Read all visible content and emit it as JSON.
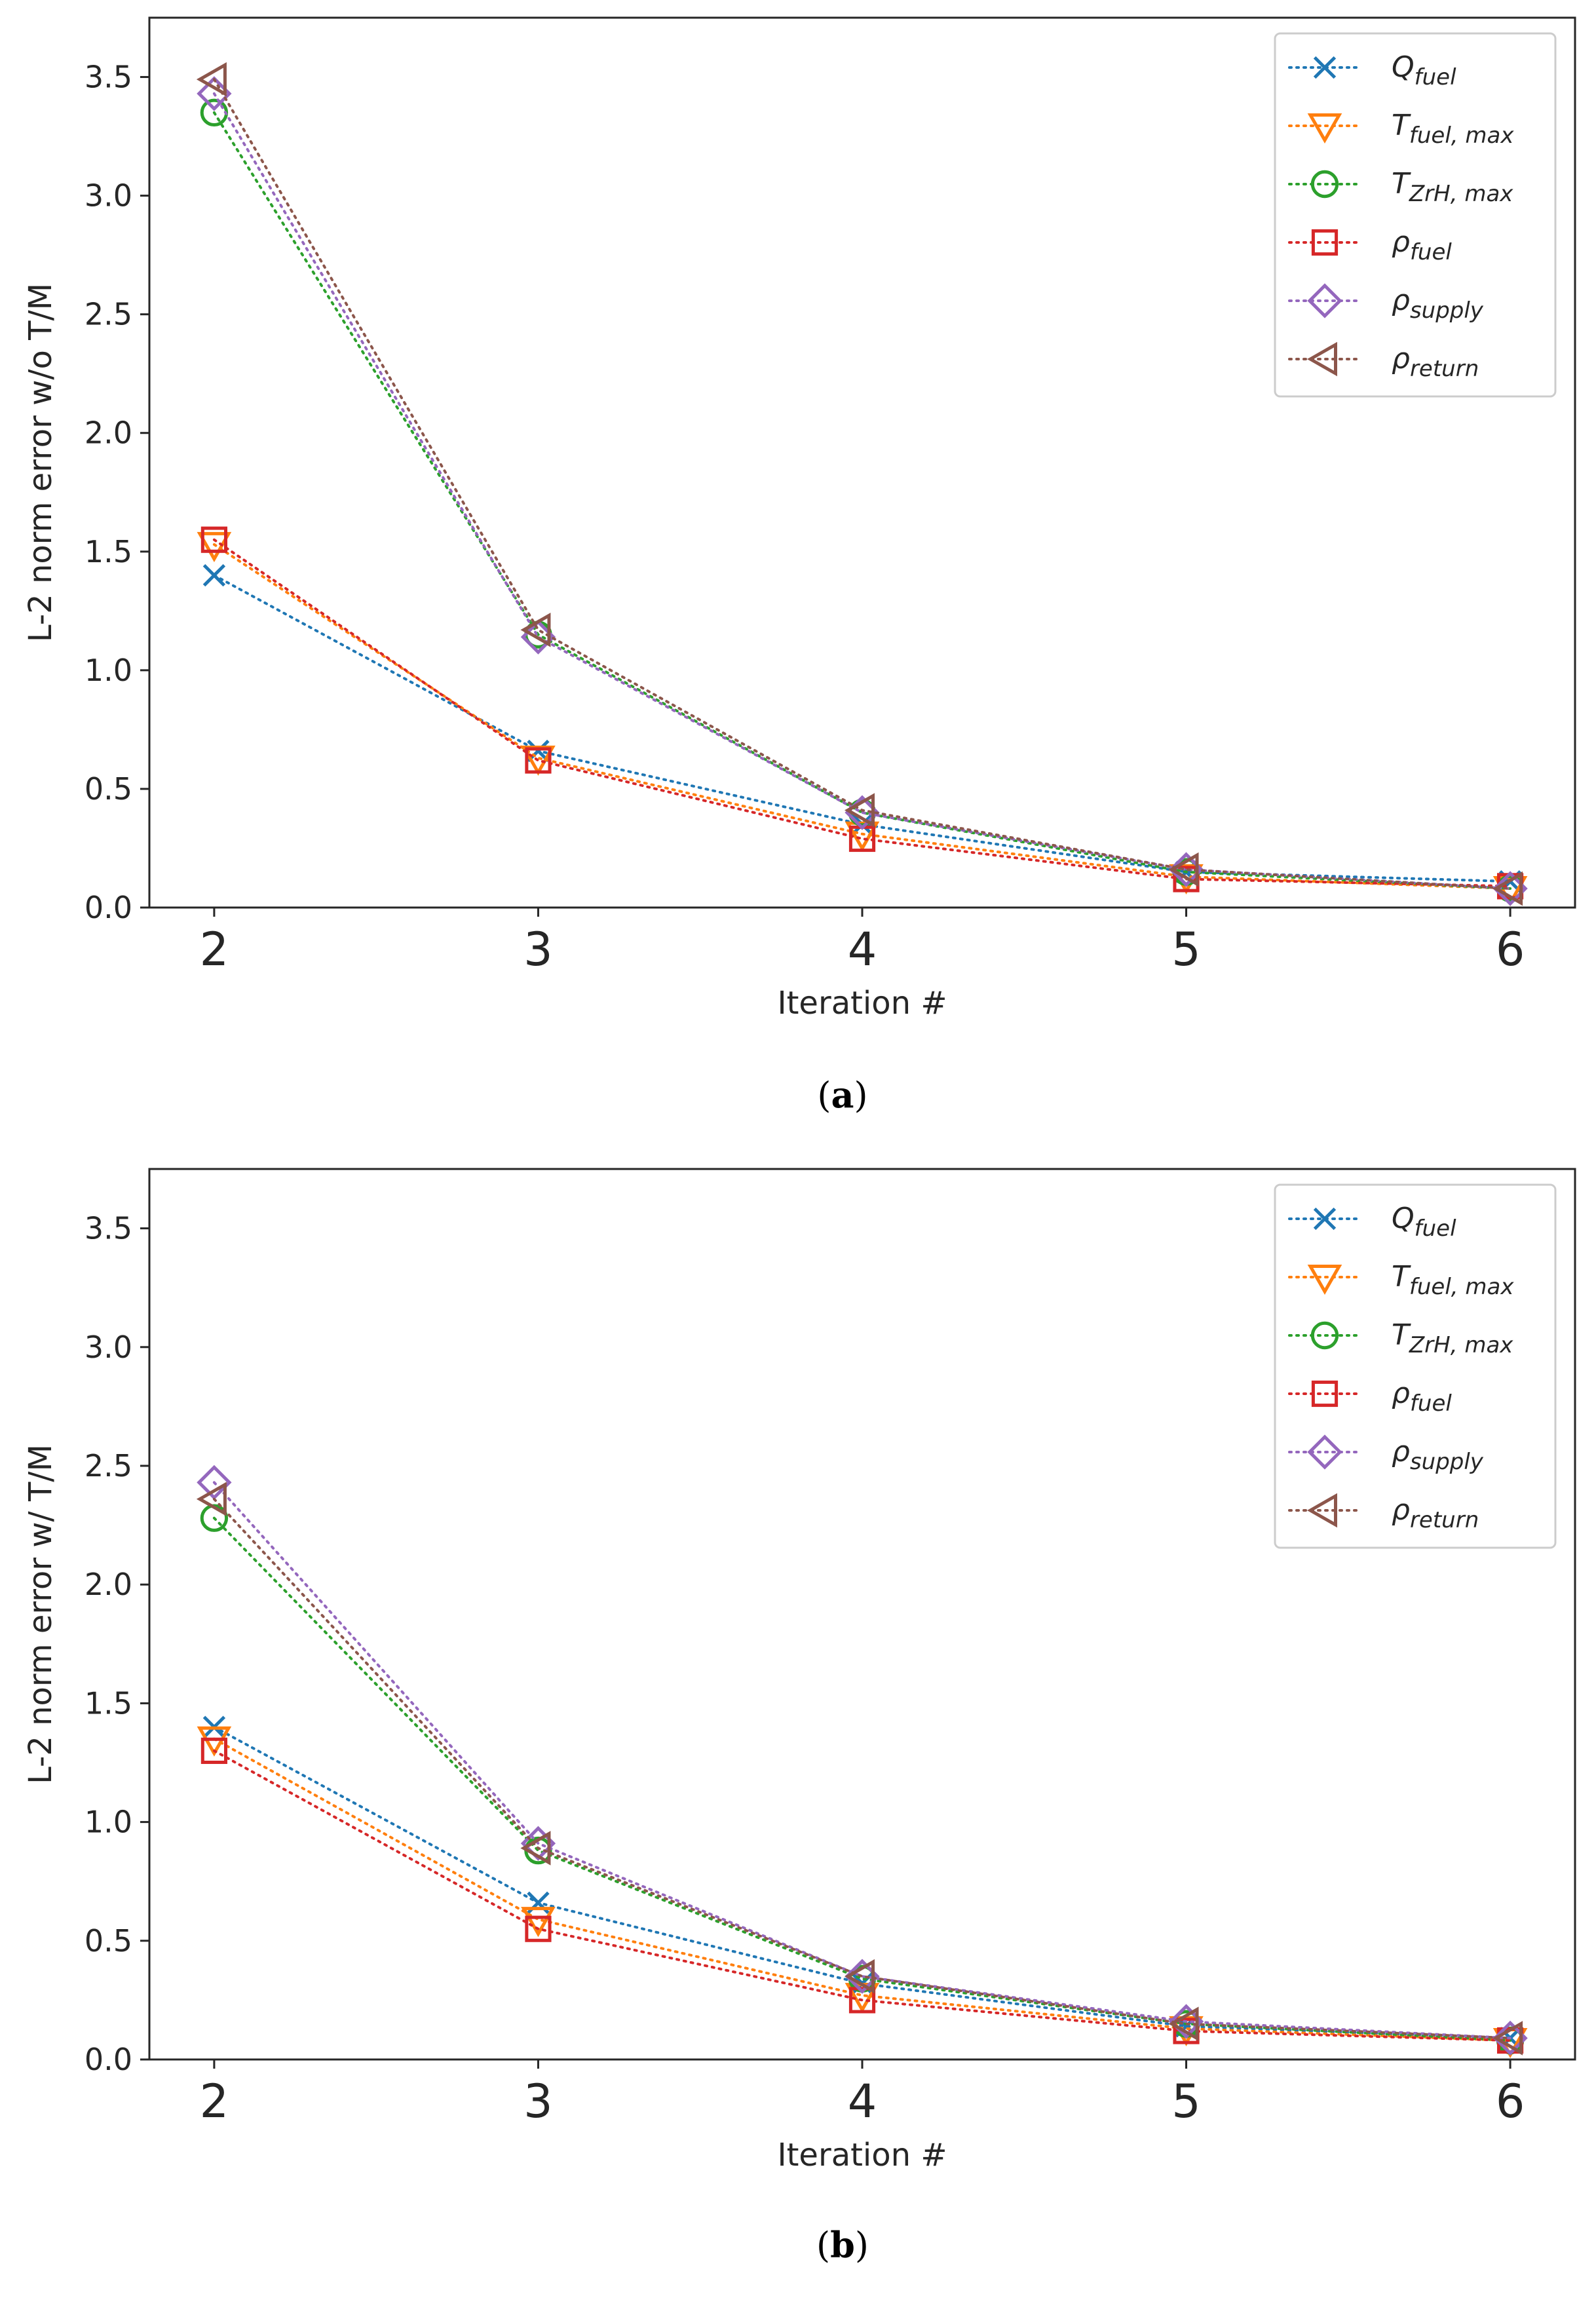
{
  "chart_data": [
    {
      "panel": "a",
      "type": "line",
      "caption_letter": "a",
      "xlabel": "Iteration #",
      "ylabel": "L-2 norm error w/o T/M",
      "categories": [
        "2",
        "3",
        "4",
        "5",
        "6"
      ],
      "x": [
        2,
        3,
        4,
        5,
        6
      ],
      "xlim": [
        1.8,
        6.2
      ],
      "ylim": [
        0,
        3.75
      ],
      "yticks": [
        "0.0",
        "0.5",
        "1.0",
        "1.5",
        "2.0",
        "2.5",
        "3.0",
        "3.5"
      ],
      "ytick_values": [
        0,
        0.5,
        1.0,
        1.5,
        2.0,
        2.5,
        3.0,
        3.5
      ],
      "grid": false,
      "legend_position": "top-right",
      "series": [
        {
          "name": "Q_fuel",
          "symbol": "Q",
          "sub": "fuel",
          "color": "#1f77b4",
          "marker": "x",
          "values": [
            1.4,
            0.66,
            0.35,
            0.15,
            0.11
          ]
        },
        {
          "name": "T_fuel,max",
          "symbol": "T",
          "sub": "fuel, max",
          "color": "#ff7f0e",
          "marker": "triangle-down",
          "values": [
            1.53,
            0.63,
            0.31,
            0.13,
            0.08
          ]
        },
        {
          "name": "T_ZrH,max",
          "symbol": "T",
          "sub": "ZrH, max",
          "color": "#2ca02c",
          "marker": "circle",
          "values": [
            3.35,
            1.15,
            0.4,
            0.15,
            0.08
          ]
        },
        {
          "name": "ρ_fuel",
          "symbol": "ρ",
          "sub": "fuel",
          "color": "#d62728",
          "marker": "square",
          "values": [
            1.55,
            0.62,
            0.29,
            0.12,
            0.09
          ]
        },
        {
          "name": "ρ_supply",
          "symbol": "ρ",
          "sub": "supply",
          "color": "#9467bd",
          "marker": "diamond",
          "values": [
            3.43,
            1.14,
            0.4,
            0.16,
            0.08
          ]
        },
        {
          "name": "ρ_return",
          "symbol": "ρ",
          "sub": "return",
          "color": "#8c564b",
          "marker": "triangle-left",
          "values": [
            3.49,
            1.17,
            0.41,
            0.16,
            0.08
          ]
        }
      ]
    },
    {
      "panel": "b",
      "type": "line",
      "caption_letter": "b",
      "xlabel": "Iteration #",
      "ylabel": "L-2 norm error w/ T/M",
      "categories": [
        "2",
        "3",
        "4",
        "5",
        "6"
      ],
      "x": [
        2,
        3,
        4,
        5,
        6
      ],
      "xlim": [
        1.8,
        6.2
      ],
      "ylim": [
        0,
        3.75
      ],
      "yticks": [
        "0.0",
        "0.5",
        "1.0",
        "1.5",
        "2.0",
        "2.5",
        "3.0",
        "3.5"
      ],
      "ytick_values": [
        0,
        0.5,
        1.0,
        1.5,
        2.0,
        2.5,
        3.0,
        3.5
      ],
      "grid": false,
      "legend_position": "top-right",
      "series": [
        {
          "name": "Q_fuel",
          "symbol": "Q",
          "sub": "fuel",
          "color": "#1f77b4",
          "marker": "x",
          "values": [
            1.4,
            0.66,
            0.32,
            0.14,
            0.09
          ]
        },
        {
          "name": "T_fuel,max",
          "symbol": "T",
          "sub": "fuel, max",
          "color": "#ff7f0e",
          "marker": "triangle-down",
          "values": [
            1.35,
            0.59,
            0.27,
            0.13,
            0.08
          ]
        },
        {
          "name": "T_ZrH,max",
          "symbol": "T",
          "sub": "ZrH, max",
          "color": "#2ca02c",
          "marker": "circle",
          "values": [
            2.28,
            0.88,
            0.34,
            0.15,
            0.08
          ]
        },
        {
          "name": "ρ_fuel",
          "symbol": "ρ",
          "sub": "fuel",
          "color": "#d62728",
          "marker": "square",
          "values": [
            1.3,
            0.55,
            0.25,
            0.12,
            0.08
          ]
        },
        {
          "name": "ρ_supply",
          "symbol": "ρ",
          "sub": "supply",
          "color": "#9467bd",
          "marker": "diamond",
          "values": [
            2.43,
            0.91,
            0.35,
            0.16,
            0.09
          ]
        },
        {
          "name": "ρ_return",
          "symbol": "ρ",
          "sub": "return",
          "color": "#8c564b",
          "marker": "triangle-left",
          "values": [
            2.36,
            0.89,
            0.35,
            0.15,
            0.09
          ]
        }
      ]
    }
  ]
}
